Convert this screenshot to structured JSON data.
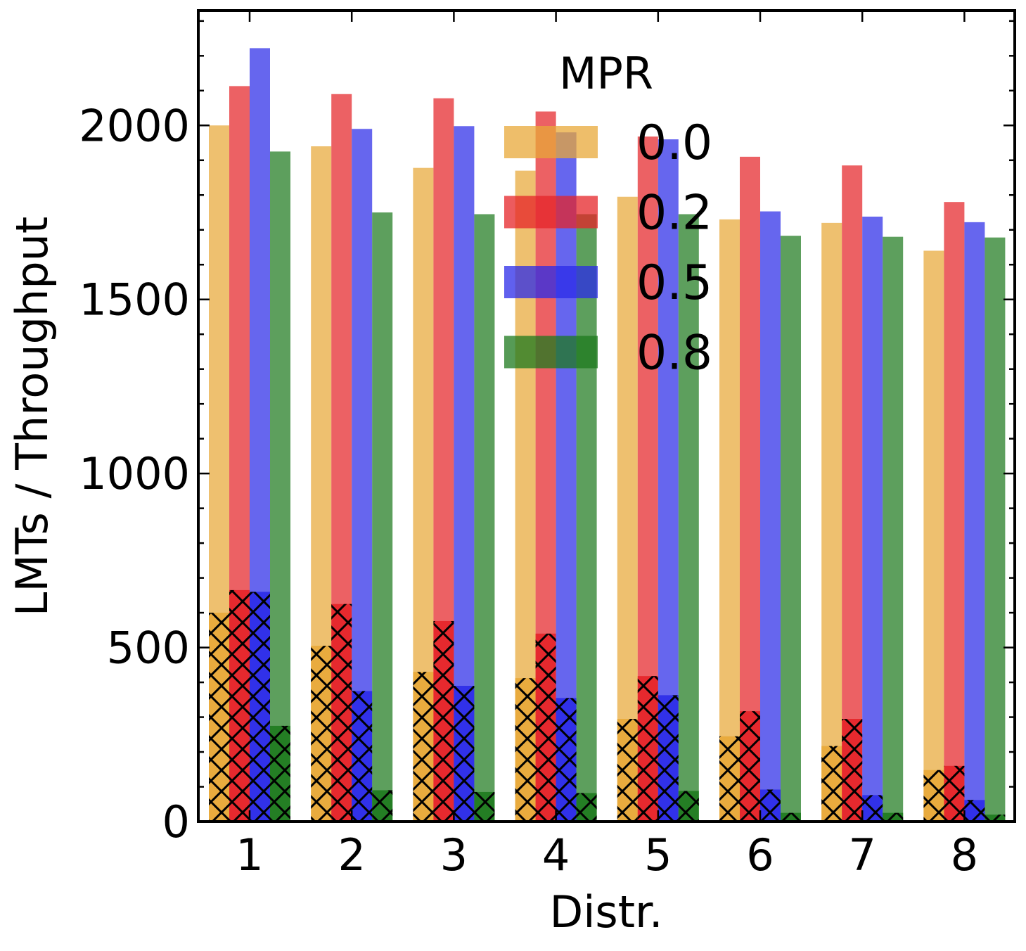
{
  "chart_data": {
    "type": "bar",
    "title": "",
    "xlabel": "Distr.",
    "ylabel": "LMTs / Throughput",
    "categories": [
      "1",
      "2",
      "3",
      "4",
      "5",
      "6",
      "7",
      "8"
    ],
    "ylim": [
      0,
      2330
    ],
    "yticks": [
      0,
      500,
      1000,
      1500,
      2000
    ],
    "yticks_labels": [
      "0",
      "500",
      "1000",
      "1500",
      "2000"
    ],
    "grid": false,
    "legend": {
      "title": "MPR",
      "placement": "top-center",
      "entries": [
        "0.0",
        "0.2",
        "0.5",
        "0.8"
      ]
    },
    "series": [
      {
        "name": "0.0",
        "color": "#E8A838",
        "throughput": [
          2000,
          1940,
          1878,
          1870,
          1795,
          1730,
          1720,
          1640
        ],
        "lmts": [
          600,
          505,
          430,
          412,
          295,
          245,
          217,
          148
        ]
      },
      {
        "name": "0.2",
        "color": "#E52428",
        "throughput": [
          2113,
          2090,
          2078,
          2040,
          1968,
          1910,
          1885,
          1780
        ],
        "lmts": [
          665,
          625,
          576,
          540,
          418,
          317,
          295,
          160
        ]
      },
      {
        "name": "0.5",
        "color": "#2B2BE8",
        "throughput": [
          2222,
          1990,
          1998,
          1980,
          1960,
          1753,
          1738,
          1722
        ],
        "lmts": [
          660,
          375,
          390,
          355,
          363,
          92,
          76,
          62
        ]
      },
      {
        "name": "0.8",
        "color": "#1E7A1E",
        "throughput": [
          1925,
          1750,
          1745,
          1745,
          1745,
          1683,
          1680,
          1678
        ],
        "lmts": [
          275,
          90,
          85,
          82,
          88,
          25,
          25,
          20
        ]
      }
    ]
  }
}
